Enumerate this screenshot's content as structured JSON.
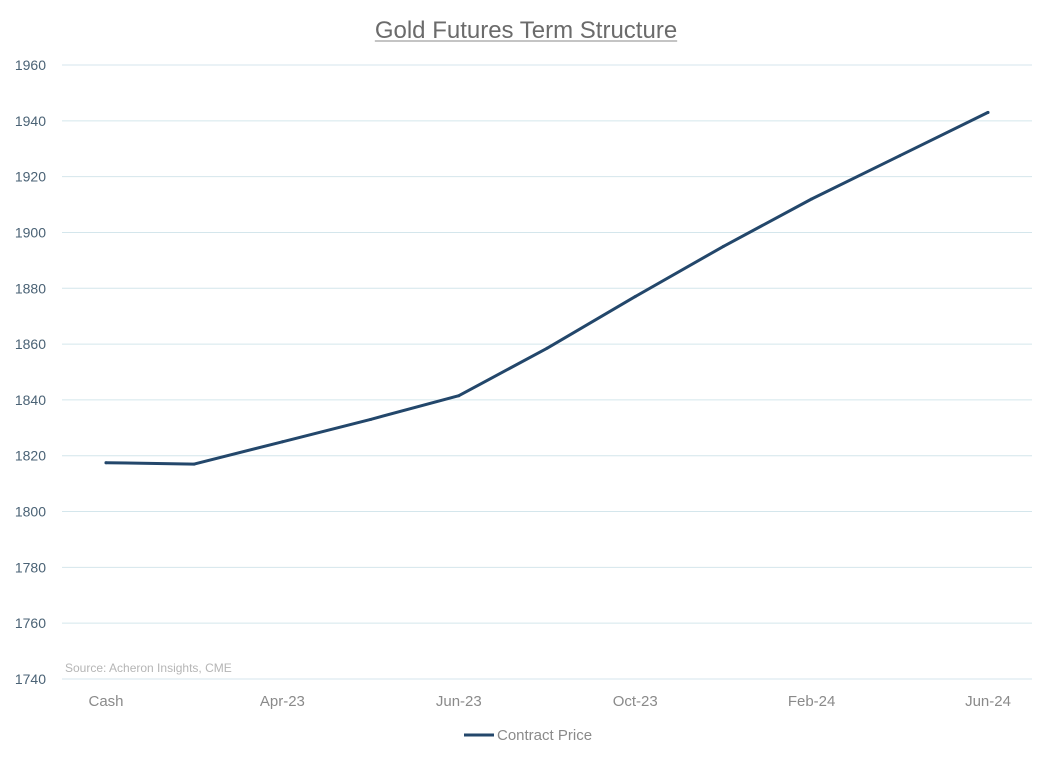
{
  "chart_data": {
    "type": "line",
    "title": "Gold Futures Term Structure",
    "xlabel": "",
    "ylabel": "",
    "ylim": [
      1740,
      1960
    ],
    "yticks": [
      1740,
      1760,
      1780,
      1800,
      1820,
      1840,
      1860,
      1880,
      1900,
      1920,
      1940,
      1960
    ],
    "x_tick_labels": [
      "Cash",
      "Apr-23",
      "Jun-23",
      "Oct-23",
      "Feb-24",
      "Jun-24"
    ],
    "grid": true,
    "legend_position": "bottom",
    "series": [
      {
        "name": "Contract Price",
        "color": "#23476b",
        "points": [
          {
            "x": 0.0,
            "y": 1817.5
          },
          {
            "x": 0.5,
            "y": 1817.0
          },
          {
            "x": 1.0,
            "y": 1825.0
          },
          {
            "x": 1.5,
            "y": 1833.0
          },
          {
            "x": 2.0,
            "y": 1841.5
          },
          {
            "x": 2.5,
            "y": 1858.5
          },
          {
            "x": 3.0,
            "y": 1877.0
          },
          {
            "x": 3.5,
            "y": 1895.0
          },
          {
            "x": 4.0,
            "y": 1912.0
          },
          {
            "x": 4.5,
            "y": 1927.5
          },
          {
            "x": 5.0,
            "y": 1943.0
          }
        ]
      }
    ],
    "source": "Source: Acheron Insights, CME"
  }
}
